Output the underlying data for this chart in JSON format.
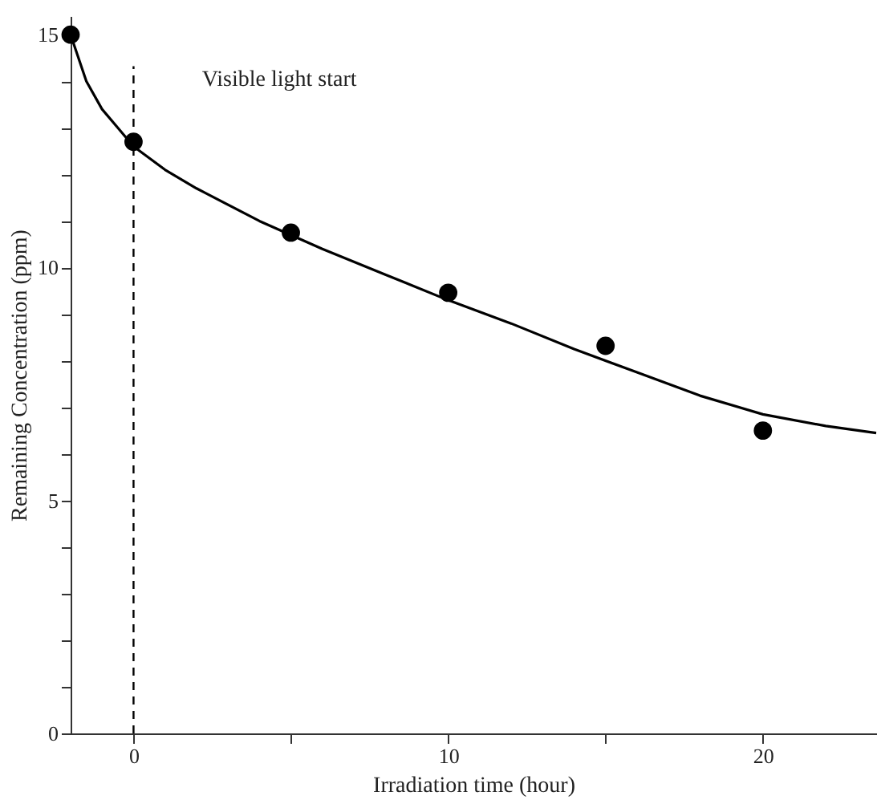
{
  "chart_data": {
    "type": "scatter",
    "xlabel": "Irradiation time (hour)",
    "ylabel": "Remaining Concentration (ppm)",
    "series": [
      {
        "color": "#000000",
        "x": [
          -2,
          0,
          5,
          10,
          15,
          20
        ],
        "values": [
          15,
          12.7,
          10.75,
          9.46,
          8.32,
          6.5
        ]
      },
      {
        "type": "line",
        "color": "#000000",
        "marker": "none",
        "x": [
          -2,
          -1.5,
          -1,
          -0.5,
          0,
          1,
          2,
          4,
          6,
          8,
          10,
          12,
          14,
          16,
          18,
          20,
          22,
          23.6
        ],
        "values": [
          15,
          14.0,
          13.4,
          13.0,
          12.6,
          12.1,
          11.7,
          11.0,
          10.4,
          9.85,
          9.3,
          8.8,
          8.25,
          7.75,
          7.25,
          6.85,
          6.6,
          6.45
        ]
      }
    ],
    "xlim": [
      -2,
      23.6
    ],
    "ylim": [
      0,
      15.4
    ],
    "xticks": [
      0,
      {
        "value": 5,
        "label": null
      },
      10,
      {
        "value": 15,
        "label": null
      },
      20
    ],
    "yticks": [
      0,
      {
        "value": 1,
        "label": null
      },
      {
        "value": 2,
        "label": null
      },
      {
        "value": 3,
        "label": null
      },
      {
        "value": 4,
        "label": null
      },
      5,
      {
        "value": 6,
        "label": null
      },
      {
        "value": 7,
        "label": null
      },
      {
        "value": 8,
        "label": null
      },
      {
        "value": 9,
        "label": null
      },
      10,
      {
        "value": 11,
        "label": null
      },
      {
        "value": 12,
        "label": null
      },
      {
        "value": 13,
        "label": null
      },
      {
        "value": 14,
        "label": null
      },
      15
    ],
    "ref_lines": [
      {
        "axis": "x",
        "value": 0,
        "label": "Visible light start",
        "line_style": "dashed",
        "color": "#000000"
      }
    ],
    "grid": false,
    "marker": "circle"
  }
}
